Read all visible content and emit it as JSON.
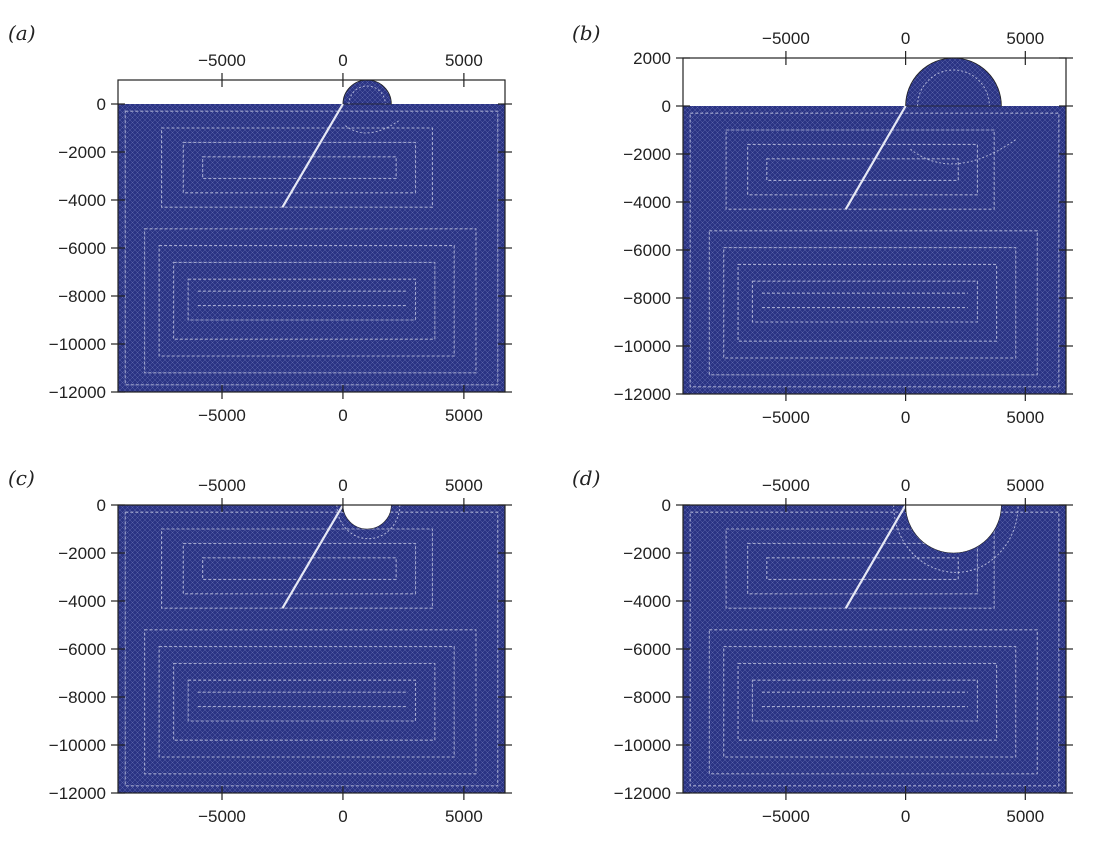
{
  "figure": {
    "panels": [
      {
        "id": "a",
        "label": "(a)",
        "x_ticks": [
          "-5000",
          "0",
          "5000"
        ],
        "x_tick_values": [
          -5000,
          0,
          5000
        ],
        "y_ticks": [
          "0",
          "-2000",
          "-4000",
          "-6000",
          "-8000",
          "-10000",
          "-12000"
        ],
        "y_tick_values": [
          0,
          -2000,
          -4000,
          -6000,
          -8000,
          -10000,
          -12000
        ],
        "x_range": [
          -9300,
          6700
        ],
        "y_range": [
          -12000,
          1000
        ],
        "box_top_value": 1000,
        "fault": {
          "x1": -2500,
          "y1": -4300,
          "x2": 0,
          "y2": 0
        },
        "feature": {
          "kind": "dome",
          "center_x": 1000,
          "center_y": 0,
          "radius": 1000
        }
      },
      {
        "id": "b",
        "label": "(b)",
        "x_ticks": [
          "-5000",
          "0",
          "5000"
        ],
        "x_tick_values": [
          -5000,
          0,
          5000
        ],
        "y_ticks": [
          "2000",
          "0",
          "-2000",
          "-4000",
          "-6000",
          "-8000",
          "-10000",
          "-12000"
        ],
        "y_tick_values": [
          2000,
          0,
          -2000,
          -4000,
          -6000,
          -8000,
          -10000,
          -12000
        ],
        "x_range": [
          -9300,
          6700
        ],
        "y_range": [
          -12000,
          2000
        ],
        "box_top_value": 2000,
        "fault": {
          "x1": -2500,
          "y1": -4300,
          "x2": 0,
          "y2": 0
        },
        "feature": {
          "kind": "dome",
          "center_x": 2000,
          "center_y": 0,
          "radius": 2000
        }
      },
      {
        "id": "c",
        "label": "(c)",
        "x_ticks": [
          "-5000",
          "0",
          "5000"
        ],
        "x_tick_values": [
          -5000,
          0,
          5000
        ],
        "y_ticks": [
          "0",
          "-2000",
          "-4000",
          "-6000",
          "-8000",
          "-10000",
          "-12000"
        ],
        "y_tick_values": [
          0,
          -2000,
          -4000,
          -6000,
          -8000,
          -10000,
          -12000
        ],
        "x_range": [
          -9300,
          6700
        ],
        "y_range": [
          -12000,
          0
        ],
        "box_top_value": 0,
        "fault": {
          "x1": -2500,
          "y1": -4300,
          "x2": 0,
          "y2": 0
        },
        "feature": {
          "kind": "cavity",
          "center_x": 1000,
          "center_y": 0,
          "radius": 1000
        }
      },
      {
        "id": "d",
        "label": "(d)",
        "x_ticks": [
          "-5000",
          "0",
          "5000"
        ],
        "x_tick_values": [
          -5000,
          0,
          5000
        ],
        "y_ticks": [
          "0",
          "-2000",
          "-4000",
          "-6000",
          "-8000",
          "-10000",
          "-12000"
        ],
        "y_tick_values": [
          0,
          -2000,
          -4000,
          -6000,
          -8000,
          -10000,
          -12000
        ],
        "x_range": [
          -9300,
          6700
        ],
        "y_range": [
          -12000,
          0
        ],
        "box_top_value": 0,
        "fault": {
          "x1": -2500,
          "y1": -4300,
          "x2": 0,
          "y2": 0
        },
        "feature": {
          "kind": "cavity",
          "center_x": 2000,
          "center_y": 0,
          "radius": 2000
        }
      }
    ],
    "colors": {
      "mesh_fill": "#2b3484",
      "mesh_grid": "#6b74b8",
      "mesh_lines": "#c9cde6",
      "fault": "#e6e8f4",
      "axis": "#222222"
    }
  }
}
